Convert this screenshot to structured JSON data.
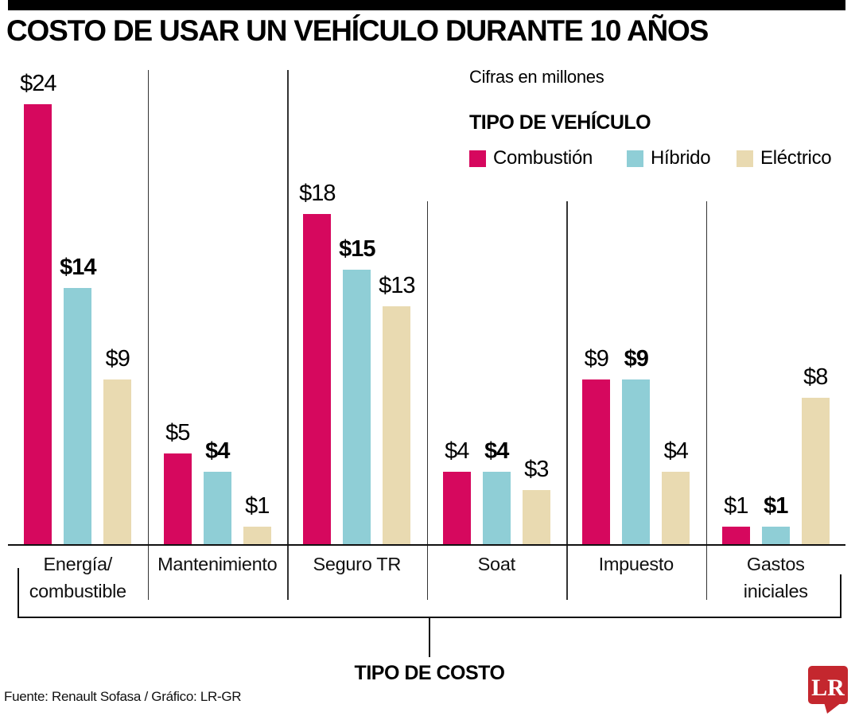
{
  "chart_data": {
    "type": "bar",
    "title": "COSTO DE USAR UN VEHÍCULO DURANTE 10 AÑOS",
    "subtitle": "Cifras en millones",
    "categories": [
      "Energía/combustible",
      "Mantenimiento",
      "Seguro TR",
      "Soat",
      "Impuesto",
      "Gastos iniciales"
    ],
    "category_display": [
      "Energía/\ncombustible",
      "Mantenimiento",
      "Seguro TR",
      "Soat",
      "Impuesto",
      "Gastos\niniciales"
    ],
    "series": [
      {
        "name": "Combustión",
        "color": "#d6085e",
        "values": [
          24,
          5,
          18,
          4,
          9,
          1
        ],
        "bold_labels": false
      },
      {
        "name": "Híbrido",
        "color": "#8fced6",
        "values": [
          14,
          4,
          15,
          4,
          9,
          1
        ],
        "bold_labels": true
      },
      {
        "name": "Eléctrico",
        "color": "#e9dab1",
        "values": [
          9,
          1,
          13,
          3,
          4,
          8
        ],
        "bold_labels": false
      }
    ],
    "value_prefix": "$",
    "units": "millones",
    "ylim": [
      0,
      24
    ],
    "grid": false,
    "legend_position": "top-right",
    "xlabel": "TIPO DE COSTO",
    "ylabel": ""
  },
  "legend": {
    "title": "TIPO DE VEHÍCULO"
  },
  "axis": {
    "x_title": "TIPO DE COSTO"
  },
  "footer": {
    "source": "Fuente: Renault Sofasa / Gráfico: LR-GR",
    "logo_text": "LR",
    "logo_color": "#c4272e"
  }
}
